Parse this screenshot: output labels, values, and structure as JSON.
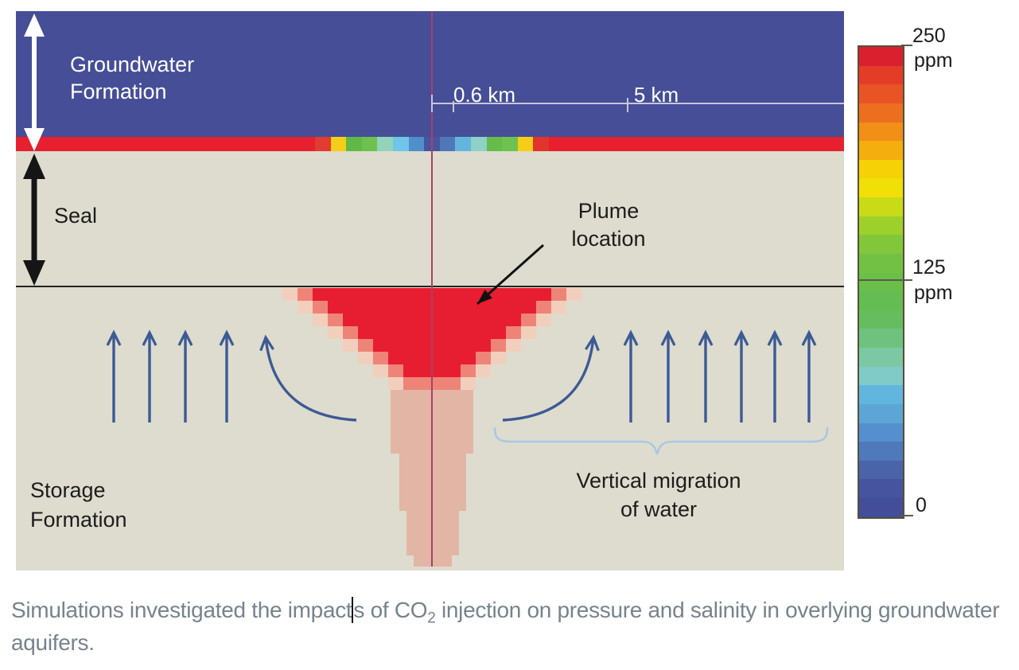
{
  "figure": {
    "groundwater": {
      "line1": "Groundwater",
      "line2": "Formation"
    },
    "seal_label": "Seal",
    "storage": {
      "line1": "Storage",
      "line2": "Formation"
    },
    "plume": {
      "line1": "Plume",
      "line2": "location"
    },
    "migration": {
      "line1": "Vertical migration",
      "line2": "of water"
    },
    "scale_ticks": {
      "near": "0.6 km",
      "far": "5 km"
    }
  },
  "colorbar": {
    "max_value": "250",
    "max_unit": "ppm",
    "mid_value": "125",
    "mid_unit": "ppm",
    "min_value": "0",
    "stops": [
      "#da202e",
      "#e33d28",
      "#e85424",
      "#ec6f1f",
      "#f18f17",
      "#f4ae0e",
      "#f6d106",
      "#f0e007",
      "#c8db16",
      "#9ed02b",
      "#82c73a",
      "#72c144",
      "#6abf4a",
      "#64bc52",
      "#66bd5f",
      "#6fc27e",
      "#7cc8a4",
      "#80cbc8",
      "#62b6dd",
      "#5da5d6",
      "#5590ce",
      "#4e79bb",
      "#4a63a9",
      "#46539e",
      "#434d98"
    ]
  },
  "strip_segments": [
    {
      "x": 376.0,
      "color": "#e23b31"
    },
    {
      "x": 395.6,
      "color": "#f6ce18"
    },
    {
      "x": 415.2,
      "color": "#5fb847"
    },
    {
      "x": 434.8,
      "color": "#6fc14f"
    },
    {
      "x": 454.4,
      "color": "#93d2bb"
    },
    {
      "x": 474.0,
      "color": "#6fc6e9"
    },
    {
      "x": 493.6,
      "color": "#4f8fcb"
    },
    {
      "x": 513.2,
      "color": "#47549e"
    },
    {
      "x": 532.8,
      "color": "#5077b8"
    },
    {
      "x": 552.4,
      "color": "#64b5de"
    },
    {
      "x": 572.0,
      "color": "#8ed1c8"
    },
    {
      "x": 591.6,
      "color": "#66bb4a"
    },
    {
      "x": 611.2,
      "color": "#70c14e"
    },
    {
      "x": 630.8,
      "color": "#f6ce18"
    },
    {
      "x": 650.4,
      "color": "#e2342c"
    }
  ],
  "caption": {
    "part1": "Simulations investigated the impact",
    "part2": "s of CO",
    "subscript": "2",
    "part3": " injection on pressure and salinity in overlying groundwater aquifers."
  },
  "colors": {
    "formation_blue": "#454e96",
    "seal_beige": "#dedcce",
    "strip_red": "#e6202f",
    "plume_red": "#e71d31",
    "plume_mid": "#ee8478",
    "plume_light": "#f2cfbc",
    "plume_col": "#e3b5a5",
    "arrow_blue": "#3c5a95",
    "brace_blue": "#a9c7e5",
    "well_line": "#a84069",
    "ruler": "#c9c5df",
    "ink": "#1c1c1c",
    "caption_gray": "#76838c",
    "colorbar_border": "#55503a"
  }
}
